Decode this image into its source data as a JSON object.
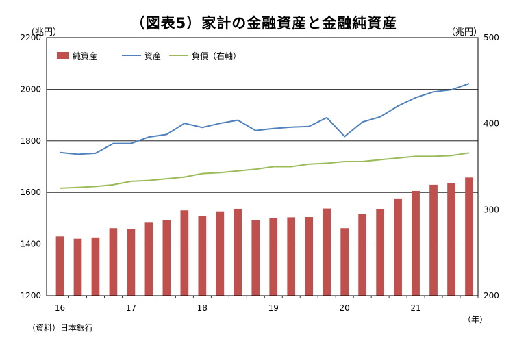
{
  "chart_data": {
    "type": "bar+line",
    "title": "（図表5）家計の金融資産と金融純資産",
    "left_unit": "（兆円）",
    "right_unit": "（兆円）",
    "x_unit": "（年）",
    "source": "（資料）日本銀行",
    "left_axis": {
      "min": 1200,
      "max": 2200,
      "ticks": [
        1200,
        1400,
        1600,
        1800,
        2000,
        2200
      ]
    },
    "right_axis": {
      "min": 200,
      "max": 500,
      "ticks": [
        200,
        300,
        400,
        500
      ]
    },
    "x_labels": [
      "16",
      "17",
      "18",
      "19",
      "20",
      "21"
    ],
    "quarters_per_label": 4,
    "series": [
      {
        "name": "純資産",
        "kind": "bar",
        "axis": "left",
        "color": "#c0504d",
        "values": [
          1430,
          1421,
          1426,
          1462,
          1459,
          1483,
          1492,
          1531,
          1510,
          1527,
          1537,
          1494,
          1500,
          1504,
          1505,
          1538,
          1462,
          1518,
          1535,
          1577,
          1606,
          1630,
          1636,
          1658
        ]
      },
      {
        "name": "資産",
        "kind": "line",
        "axis": "left",
        "color": "#4f81bd",
        "values": [
          1755,
          1748,
          1752,
          1790,
          1790,
          1815,
          1825,
          1868,
          1852,
          1868,
          1880,
          1840,
          1848,
          1853,
          1856,
          1890,
          1817,
          1873,
          1893,
          1935,
          1968,
          1990,
          1998,
          2022
        ]
      },
      {
        "name": "負債（右軸）",
        "kind": "line",
        "axis": "right",
        "color": "#9bbb59",
        "values": [
          325,
          326,
          327,
          329,
          333,
          334,
          336,
          338,
          342,
          343,
          345,
          347,
          350,
          350,
          353,
          354,
          356,
          356,
          358,
          360,
          362,
          362,
          363,
          366
        ]
      }
    ],
    "legend_position": "top-left",
    "gridlines": "horizontal"
  }
}
